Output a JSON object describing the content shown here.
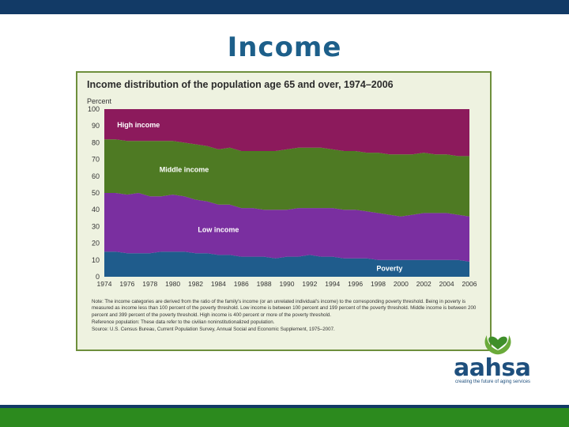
{
  "slide": {
    "title": "Income"
  },
  "figure": {
    "title": "Income distribution of the population age 65 and over, 1974–2006",
    "notes": [
      "Note: The income categories are derived from the ratio of the family's income (or an unrelated individual's income) to the corresponding poverty threshold. Being in poverty is measured as income less than 100 percent of the poverty threshold. Low income is between 100 percent and 199 percent of the poverty threshold. Middle income is between 200 percent and 399 percent of the poverty threshold. High income is 400 percent or more of the poverty threshold.",
      "Reference population: These data refer to the civilian noninstitutionalized population.",
      "Source: U.S. Census Bureau, Current Population Survey, Annual Social and Economic Supplement, 1975–2007."
    ]
  },
  "logo": {
    "word": "aahsa",
    "tagline": "creating the future of aging services"
  },
  "chart_data": {
    "type": "area",
    "stacked": true,
    "title": "Income distribution of the population age 65 and over, 1974–2006",
    "ylabel": "Percent",
    "xlabel": "",
    "ylim": [
      0,
      100
    ],
    "yticks": [
      0,
      10,
      20,
      30,
      40,
      50,
      60,
      70,
      80,
      90,
      100
    ],
    "xticks": [
      1974,
      1976,
      1978,
      1980,
      1982,
      1984,
      1986,
      1988,
      1990,
      1992,
      1994,
      1996,
      1998,
      2000,
      2002,
      2004,
      2006
    ],
    "x": [
      1974,
      1975,
      1976,
      1977,
      1978,
      1979,
      1980,
      1981,
      1982,
      1983,
      1984,
      1985,
      1986,
      1987,
      1988,
      1989,
      1990,
      1991,
      1992,
      1993,
      1994,
      1995,
      1996,
      1997,
      1998,
      1999,
      2000,
      2001,
      2002,
      2003,
      2004,
      2005,
      2006
    ],
    "series": [
      {
        "name": "Poverty",
        "color": "#1f5c8c",
        "values": [
          15,
          15,
          14,
          14,
          14,
          15,
          15,
          15,
          14,
          14,
          13,
          13,
          12,
          12,
          12,
          11,
          12,
          12,
          13,
          12,
          12,
          11,
          11,
          11,
          10,
          10,
          10,
          10,
          10,
          10,
          10,
          10,
          9
        ]
      },
      {
        "name": "Low income",
        "color": "#7a2fa0",
        "values": [
          35,
          35,
          35,
          36,
          34,
          33,
          34,
          33,
          32,
          31,
          30,
          30,
          29,
          29,
          28,
          29,
          28,
          29,
          28,
          29,
          29,
          29,
          29,
          28,
          28,
          27,
          26,
          27,
          28,
          28,
          28,
          27,
          27
        ]
      },
      {
        "name": "Middle income",
        "color": "#4e7a23",
        "values": [
          32,
          32,
          32,
          31,
          33,
          33,
          32,
          32,
          33,
          33,
          33,
          34,
          34,
          34,
          35,
          35,
          36,
          36,
          36,
          36,
          35,
          35,
          35,
          35,
          36,
          36,
          37,
          36,
          36,
          35,
          35,
          35,
          36
        ]
      },
      {
        "name": "High income",
        "color": "#8c1a5c",
        "values": [
          18,
          18,
          19,
          19,
          19,
          19,
          19,
          20,
          21,
          22,
          24,
          23,
          25,
          25,
          25,
          25,
          24,
          23,
          23,
          23,
          24,
          25,
          25,
          26,
          26,
          27,
          27,
          27,
          26,
          27,
          27,
          28,
          28
        ]
      }
    ],
    "series_labels": [
      "Poverty",
      "Low income",
      "Middle income",
      "High income"
    ],
    "grid": false
  }
}
